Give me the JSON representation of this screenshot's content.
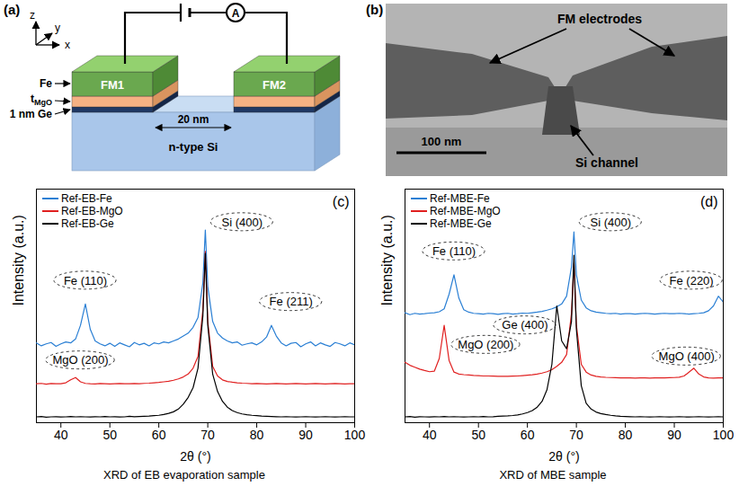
{
  "panel_a": {
    "label": "(a)",
    "axes": {
      "x": "x",
      "y": "y",
      "z": "z"
    },
    "electrodes": [
      "FM1",
      "FM2"
    ],
    "layer_labels": {
      "fe": "Fe",
      "mgo": {
        "text": "t",
        "subscript": "MgO"
      },
      "ge": "1 nm Ge"
    },
    "gap": "20 nm",
    "substrate": "n-type Si",
    "meter": "A"
  },
  "panel_b": {
    "label": "(b)",
    "electrodes": "FM electrodes",
    "channel": "Si channel",
    "scale_bar": "100 nm"
  },
  "chart_data": [
    {
      "type": "line",
      "panel": "(c)",
      "caption": "XRD of EB evaporation sample",
      "x_label": "2θ (°)",
      "y_label": "Intensity (a.u.)",
      "xlim": [
        35,
        100
      ],
      "xticks": [
        40,
        50,
        60,
        70,
        80,
        90,
        100
      ],
      "ylim": [
        0,
        12
      ],
      "tick_labels": "x",
      "legend": "upper left",
      "x": [
        35,
        36,
        37,
        38,
        39,
        40,
        41,
        42,
        43,
        44,
        45,
        46,
        47,
        48,
        49,
        50,
        51,
        52,
        53,
        54,
        55,
        56,
        57,
        58,
        59,
        60,
        61,
        62,
        63,
        64,
        65,
        66,
        67,
        68,
        69,
        69.5,
        70,
        71,
        72,
        73,
        74,
        75,
        76,
        77,
        78,
        79,
        80,
        81,
        82,
        83,
        84,
        85,
        86,
        87,
        88,
        89,
        90,
        91,
        92,
        93,
        94,
        95,
        96,
        97,
        98,
        99,
        100
      ],
      "series": [
        {
          "name": "Ref-EB-Fe",
          "color": "#2a7fd4",
          "values": [
            4.1,
            3.95,
            4.05,
            4.12,
            3.92,
            4.05,
            4.15,
            4.1,
            4.3,
            5.0,
            6.1,
            4.8,
            4.2,
            4.05,
            3.95,
            4.08,
            3.92,
            4.1,
            4.0,
            3.9,
            4.12,
            4.0,
            4.08,
            3.95,
            4.1,
            4.05,
            4.15,
            4.1,
            4.2,
            4.3,
            4.45,
            4.6,
            4.9,
            5.4,
            7.2,
            9.9,
            7.0,
            5.2,
            4.6,
            4.35,
            4.2,
            4.1,
            4.15,
            3.98,
            4.05,
            4.1,
            4.0,
            4.15,
            4.4,
            5.0,
            4.45,
            4.1,
            3.95,
            4.08,
            4.12,
            3.9,
            4.05,
            4.15,
            3.95,
            4.1,
            4.0,
            3.92,
            4.12,
            4.05,
            3.95,
            4.1,
            4.0
          ]
        },
        {
          "name": "Ref-EB-MgO",
          "color": "#e02020",
          "values": [
            2.0,
            2.02,
            1.98,
            2.01,
            2.0,
            2.0,
            2.05,
            2.2,
            2.32,
            2.1,
            2.02,
            2.0,
            1.99,
            2.01,
            2.0,
            1.99,
            2.0,
            2.01,
            2.0,
            2.0,
            2.01,
            2.0,
            2.02,
            2.03,
            2.05,
            2.07,
            2.1,
            2.13,
            2.18,
            2.25,
            2.35,
            2.5,
            2.8,
            3.4,
            5.8,
            8.8,
            5.2,
            2.9,
            2.4,
            2.2,
            2.12,
            2.08,
            2.05,
            2.03,
            2.02,
            2.0,
            2.01,
            2.0,
            1.99,
            2.0,
            2.01,
            2.0,
            1.99,
            2.0,
            2.01,
            2.0,
            1.99,
            2.0,
            2.01,
            2.0,
            1.99,
            2.0,
            2.01,
            2.0,
            1.99,
            2.0,
            2.0
          ]
        },
        {
          "name": "Ref-EB-Ge",
          "color": "#000000",
          "values": [
            0.3,
            0.32,
            0.28,
            0.3,
            0.31,
            0.29,
            0.3,
            0.32,
            0.3,
            0.31,
            0.3,
            0.29,
            0.31,
            0.3,
            0.32,
            0.3,
            0.31,
            0.29,
            0.3,
            0.33,
            0.31,
            0.32,
            0.33,
            0.34,
            0.36,
            0.38,
            0.42,
            0.48,
            0.56,
            0.7,
            0.95,
            1.3,
            1.8,
            2.8,
            5.5,
            8.7,
            5.0,
            2.5,
            1.6,
            1.1,
            0.8,
            0.62,
            0.52,
            0.45,
            0.41,
            0.38,
            0.36,
            0.34,
            0.33,
            0.32,
            0.31,
            0.3,
            0.31,
            0.3,
            0.29,
            0.3,
            0.31,
            0.3,
            0.29,
            0.3,
            0.31,
            0.3,
            0.29,
            0.3,
            0.31,
            0.3,
            0.3
          ]
        }
      ],
      "annotations": [
        {
          "text": "Fe (110)",
          "x": 45,
          "y": 7.3
        },
        {
          "text": "Si (400)",
          "x": 77,
          "y": 10.3
        },
        {
          "text": "Fe (211)",
          "x": 87,
          "y": 6.2
        },
        {
          "text": "MgO (200)",
          "x": 44,
          "y": 3.2
        }
      ]
    },
    {
      "type": "line",
      "panel": "(d)",
      "caption": "XRD of MBE sample",
      "x_label": "2θ (°)",
      "y_label": "Intensity (a.u.)",
      "xlim": [
        35,
        100
      ],
      "xticks": [
        40,
        50,
        60,
        70,
        80,
        90,
        100
      ],
      "ylim": [
        0,
        12
      ],
      "tick_labels": "x",
      "legend": "upper left",
      "x": [
        35,
        36,
        37,
        38,
        39,
        40,
        41,
        42,
        43,
        44,
        45,
        46,
        47,
        48,
        49,
        50,
        51,
        52,
        53,
        54,
        55,
        56,
        57,
        58,
        59,
        60,
        61,
        62,
        63,
        64,
        65,
        66,
        67,
        68,
        69,
        69.5,
        70,
        71,
        72,
        73,
        74,
        75,
        76,
        77,
        78,
        79,
        80,
        81,
        82,
        83,
        84,
        85,
        86,
        87,
        88,
        89,
        90,
        91,
        92,
        93,
        94,
        95,
        96,
        97,
        98,
        99,
        100
      ],
      "series": [
        {
          "name": "Ref-MBE-Fe",
          "color": "#2a7fd4",
          "values": [
            5.65,
            5.55,
            5.62,
            5.58,
            5.6,
            5.63,
            5.65,
            5.7,
            5.85,
            6.6,
            7.6,
            6.4,
            5.8,
            5.68,
            5.62,
            5.6,
            5.58,
            5.62,
            5.6,
            5.57,
            5.6,
            5.62,
            5.58,
            5.6,
            5.63,
            5.62,
            5.65,
            5.68,
            5.72,
            5.78,
            5.85,
            5.95,
            6.1,
            6.5,
            8.0,
            9.8,
            7.6,
            6.3,
            5.9,
            5.75,
            5.68,
            5.65,
            5.62,
            5.6,
            5.62,
            5.58,
            5.6,
            5.6,
            5.58,
            5.6,
            5.62,
            5.6,
            5.58,
            5.6,
            5.62,
            5.6,
            5.6,
            5.62,
            5.6,
            5.58,
            5.6,
            5.62,
            5.65,
            5.75,
            6.0,
            6.5,
            6.2
          ]
        },
        {
          "name": "Ref-MBE-MgO",
          "color": "#e02020",
          "values": [
            3.1,
            2.95,
            2.85,
            2.75,
            2.68,
            2.62,
            2.65,
            3.3,
            5.0,
            3.2,
            2.6,
            2.5,
            2.47,
            2.45,
            2.43,
            2.42,
            2.4,
            2.4,
            2.39,
            2.38,
            2.38,
            2.38,
            2.39,
            2.4,
            2.42,
            2.44,
            2.46,
            2.5,
            2.55,
            2.62,
            2.72,
            2.9,
            3.1,
            3.5,
            5.6,
            8.2,
            5.0,
            3.0,
            2.6,
            2.45,
            2.38,
            2.35,
            2.33,
            2.32,
            2.31,
            2.3,
            2.3,
            2.3,
            2.29,
            2.3,
            2.3,
            2.29,
            2.3,
            2.3,
            2.3,
            2.31,
            2.32,
            2.34,
            2.4,
            2.6,
            2.8,
            2.5,
            2.35,
            2.3,
            2.29,
            2.3,
            2.3
          ]
        },
        {
          "name": "Ref-MBE-Ge",
          "color": "#000000",
          "values": [
            0.3,
            0.32,
            0.28,
            0.31,
            0.3,
            0.29,
            0.31,
            0.3,
            0.32,
            0.3,
            0.31,
            0.3,
            0.29,
            0.3,
            0.31,
            0.3,
            0.32,
            0.3,
            0.31,
            0.33,
            0.34,
            0.35,
            0.37,
            0.4,
            0.45,
            0.52,
            0.62,
            0.8,
            1.1,
            1.7,
            3.0,
            6.0,
            4.2,
            3.8,
            5.2,
            8.6,
            4.8,
            1.9,
            1.0,
            0.7,
            0.55,
            0.47,
            0.42,
            0.38,
            0.35,
            0.33,
            0.32,
            0.31,
            0.3,
            0.31,
            0.3,
            0.29,
            0.3,
            0.31,
            0.3,
            0.29,
            0.3,
            0.31,
            0.3,
            0.29,
            0.3,
            0.31,
            0.3,
            0.29,
            0.3,
            0.31,
            0.3
          ]
        }
      ],
      "annotations": [
        {
          "text": "Fe (110)",
          "x": 45,
          "y": 8.8
        },
        {
          "text": "Si (400)",
          "x": 77,
          "y": 10.3
        },
        {
          "text": "Fe (220)",
          "x": 93.5,
          "y": 7.3
        },
        {
          "text": "MgO (200)",
          "x": 51.5,
          "y": 4.0
        },
        {
          "text": "MgO (400)",
          "x": 92.5,
          "y": 3.4
        },
        {
          "text": "Ge (400)",
          "x": 59.5,
          "y": 5.0
        }
      ]
    }
  ]
}
